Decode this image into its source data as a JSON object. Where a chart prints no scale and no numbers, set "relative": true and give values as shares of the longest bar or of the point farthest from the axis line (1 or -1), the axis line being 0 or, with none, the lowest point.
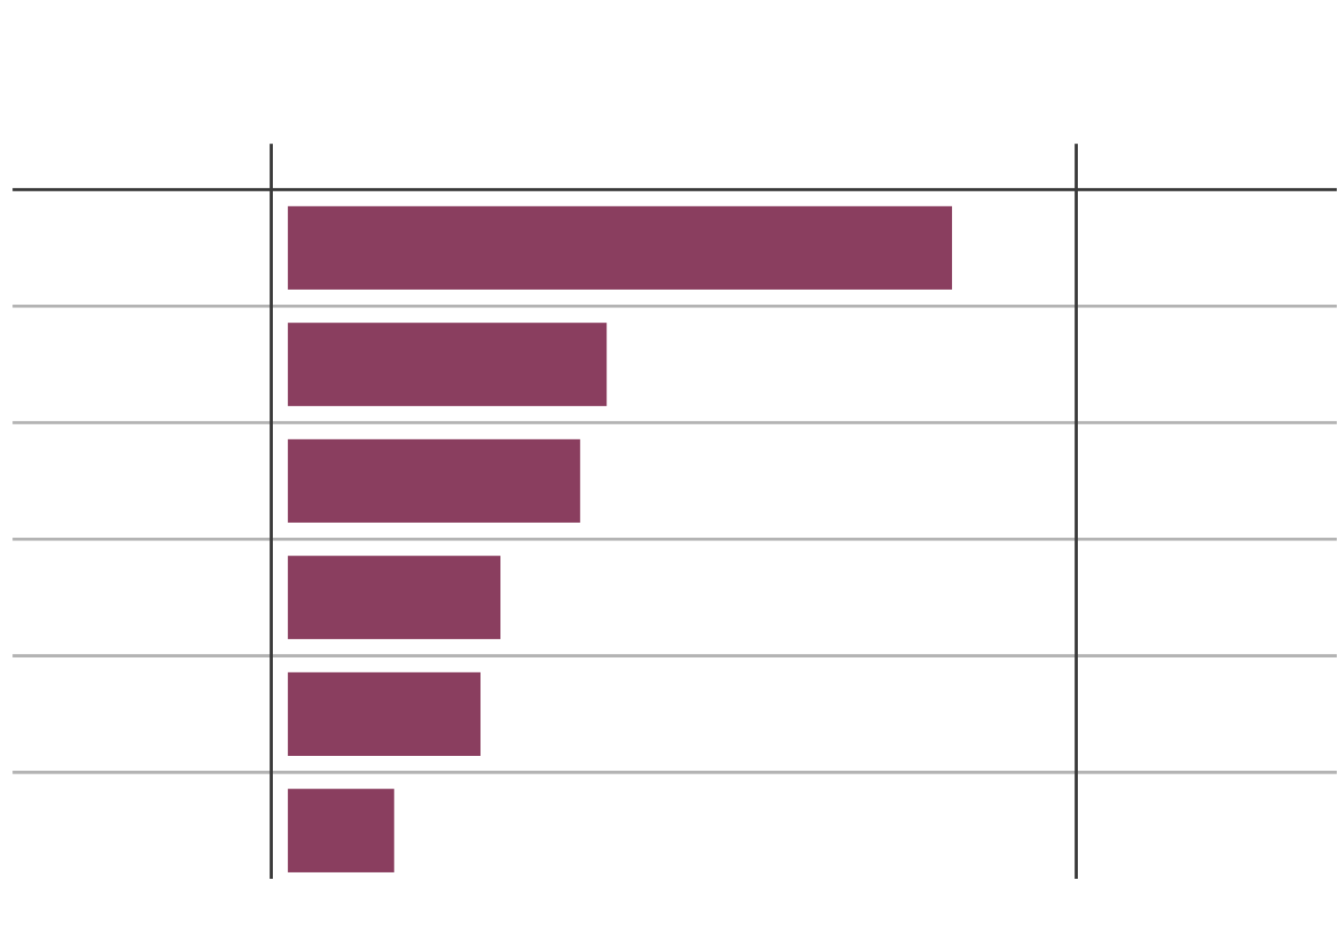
{
  "chart_data": {
    "type": "bar",
    "orientation": "horizontal",
    "relative": true,
    "categories": [
      null,
      null,
      null,
      null,
      null,
      null
    ],
    "values": [
      1,
      0.48,
      0.44,
      0.32,
      0.29,
      0.16
    ],
    "color": "#8a3e5f",
    "grid": "y"
  }
}
